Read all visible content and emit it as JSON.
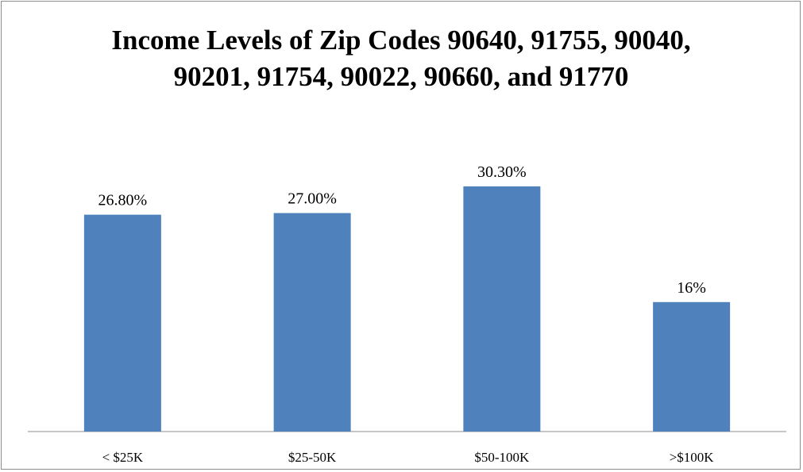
{
  "chart_data": {
    "type": "bar",
    "title": "Income Levels of Zip Codes 90640, 91755, 90040, 90201, 91754, 90022, 90660, and 91770",
    "categories": [
      "< $25K",
      "$25-50K",
      "$50-100K",
      ">$100K"
    ],
    "values": [
      26.8,
      27.0,
      30.3,
      16
    ],
    "value_labels": [
      "26.80%",
      "27.00%",
      "30.30%",
      "16%"
    ],
    "color": "#4f81bd"
  }
}
